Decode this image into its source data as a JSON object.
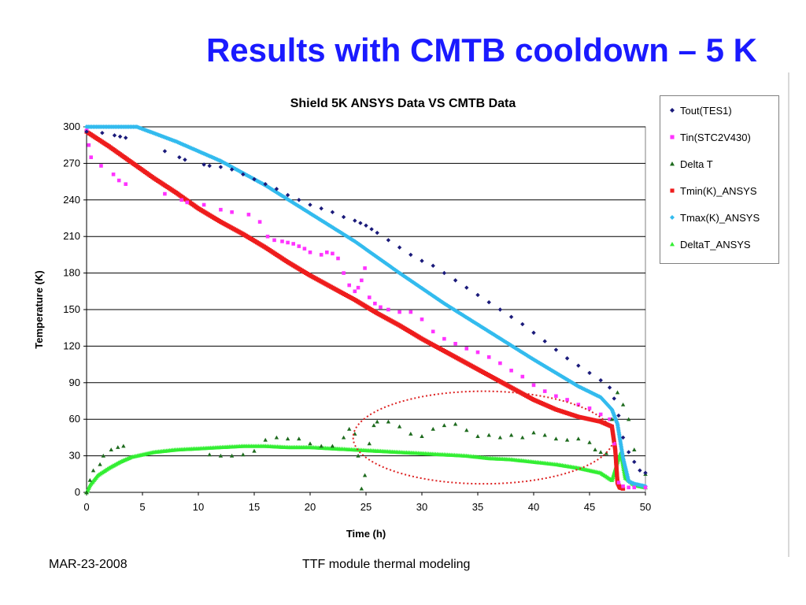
{
  "slide": {
    "title": "Results with CMTB cooldown – 5 K",
    "footer_left": "MAR-23-2008",
    "footer_center": "TTF module thermal modeling"
  },
  "chart_data": {
    "type": "scatter",
    "title": "Shield 5K ANSYS Data VS CMTB Data",
    "xlabel": "Time (h)",
    "ylabel": "Temperature (K)",
    "xlim": [
      0,
      50
    ],
    "ylim": [
      0,
      300
    ],
    "xticks": [
      0,
      5,
      10,
      15,
      20,
      25,
      30,
      35,
      40,
      45,
      50
    ],
    "yticks": [
      0,
      30,
      60,
      90,
      120,
      150,
      180,
      210,
      240,
      270,
      300
    ],
    "grid": "horizontal",
    "legend_position": "right",
    "annotation": "red dotted ellipse around Delta T between t≈24 h and t≈47 h",
    "series": [
      {
        "name": "Tout(TES1)",
        "marker": "diamond",
        "color": "#1a1a7a",
        "x": [
          0,
          1.4,
          2.5,
          3,
          3.5,
          7,
          8.3,
          8.8,
          10.5,
          11,
          12,
          13,
          14,
          15,
          16,
          17,
          18,
          19,
          20,
          21,
          22,
          23,
          24,
          24.5,
          25,
          25.5,
          26,
          27,
          28,
          29,
          30,
          31,
          32,
          33,
          34,
          35,
          36,
          37,
          38,
          39,
          40,
          41,
          42,
          43,
          44,
          45,
          46,
          46.8,
          47.2,
          47.6,
          48,
          48.5,
          49,
          49.5,
          50
        ],
        "y": [
          296,
          295,
          293,
          292,
          291,
          280,
          275,
          273,
          269,
          268,
          267,
          265,
          261,
          257,
          253,
          249,
          244,
          240,
          236,
          233,
          230,
          226,
          223,
          221,
          219,
          216,
          213,
          207,
          201,
          195,
          190,
          186,
          180,
          174,
          168,
          162,
          156,
          150,
          144,
          138,
          131,
          124,
          117,
          110,
          104,
          98,
          92,
          86,
          77,
          63,
          45,
          33,
          25,
          18,
          16
        ]
      },
      {
        "name": "Tin(STC2V430)",
        "marker": "square",
        "color": "#ff33ff",
        "x": [
          0,
          0.2,
          0.4,
          1.3,
          2.4,
          2.9,
          3.5,
          7,
          8.5,
          9,
          10.5,
          12,
          13,
          14.5,
          15.5,
          16.2,
          16.8,
          17.5,
          18,
          18.5,
          19,
          19.5,
          20,
          21,
          21.5,
          22,
          22.5,
          23,
          23.5,
          24,
          24.3,
          24.6,
          24.9,
          25.3,
          25.8,
          26.3,
          27,
          28,
          29,
          30,
          31,
          32,
          33,
          34,
          35,
          36,
          37,
          38,
          39,
          40,
          41,
          42,
          43,
          44,
          45,
          46,
          46.8,
          47.2,
          47.6,
          48,
          48.5,
          49,
          50
        ],
        "y": [
          297,
          285,
          275,
          268,
          261,
          256,
          253,
          245,
          240,
          238,
          236,
          232,
          230,
          228,
          222,
          210,
          207,
          206,
          205,
          204,
          202,
          200,
          197,
          195,
          197,
          196,
          192,
          180,
          170,
          165,
          168,
          174,
          184,
          160,
          155,
          152,
          150,
          148,
          148,
          142,
          132,
          126,
          122,
          118,
          115,
          111,
          106,
          100,
          95,
          88,
          83,
          79,
          76,
          72,
          69,
          64,
          60,
          40,
          8,
          5,
          4,
          4,
          4
        ]
      },
      {
        "name": "Delta T",
        "marker": "triangle",
        "color": "#1e6b1e",
        "x": [
          0,
          0.3,
          0.6,
          1.2,
          1.5,
          2.2,
          2.8,
          3.3,
          11,
          12,
          13,
          14,
          15,
          16,
          17,
          18,
          19,
          20,
          21,
          22,
          23,
          23.5,
          24,
          24.3,
          24.6,
          24.9,
          25.3,
          25.7,
          26,
          27,
          28,
          29,
          30,
          31,
          32,
          33,
          34,
          35,
          36,
          37,
          38,
          39,
          40,
          41,
          42,
          43,
          44,
          45,
          45.5,
          46,
          46.5,
          47,
          47.5,
          48,
          48.5,
          49,
          50
        ],
        "y": [
          0,
          10,
          18,
          23,
          30,
          35,
          37,
          38,
          31,
          30,
          30,
          31,
          34,
          43,
          45,
          44,
          44,
          40,
          38,
          38,
          45,
          52,
          48,
          30,
          3,
          14,
          40,
          55,
          58,
          58,
          54,
          48,
          46,
          52,
          55,
          56,
          51,
          46,
          47,
          45,
          47,
          45,
          49,
          47,
          44,
          43,
          44,
          41,
          35,
          33,
          32,
          60,
          82,
          72,
          60,
          35,
          15
        ]
      },
      {
        "name": "Tmin(K)_ANSYS",
        "marker": "square",
        "color": "#ee1c1c",
        "x": [
          0,
          2,
          4,
          6,
          8,
          10,
          12,
          14,
          16,
          18,
          20,
          22,
          24,
          26,
          28,
          30,
          32,
          34,
          36,
          38,
          40,
          42,
          44,
          46,
          47,
          47.3,
          47.5,
          47.7,
          48
        ],
        "y": [
          296,
          284,
          271,
          258,
          246,
          233,
          222,
          212,
          201,
          189,
          178,
          168,
          158,
          147,
          137,
          126,
          116,
          106,
          96,
          86,
          76,
          68,
          62,
          58,
          54,
          35,
          8,
          4,
          3
        ]
      },
      {
        "name": "Tmax(K)_ANSYS",
        "marker": "diamond",
        "color": "#33bbee",
        "x": [
          0,
          4.5,
          8,
          12,
          16,
          20,
          24,
          28,
          32,
          36,
          40,
          42,
          44,
          46,
          47,
          47.5,
          48,
          48.5,
          49,
          50
        ],
        "y": [
          300,
          300,
          288,
          272,
          252,
          229,
          206,
          180,
          155,
          132,
          109,
          98,
          87,
          78,
          68,
          56,
          28,
          9,
          7,
          5
        ]
      },
      {
        "name": "DeltaT_ANSYS",
        "marker": "triangle",
        "color": "#33ee33",
        "x": [
          0,
          0.3,
          1,
          2,
          3,
          4,
          5,
          6,
          7,
          8,
          10,
          12,
          14,
          16,
          18,
          20,
          22,
          24,
          26,
          28,
          30,
          32,
          34,
          36,
          38,
          40,
          42,
          44,
          46,
          47,
          47.5,
          47.8,
          48.2,
          49,
          50
        ],
        "y": [
          0,
          6,
          14,
          20,
          25,
          29,
          31,
          33,
          34,
          35,
          36,
          37,
          38,
          38,
          37,
          37,
          36,
          35,
          34,
          33,
          32,
          31,
          30,
          28,
          27,
          25,
          23,
          20,
          16,
          10,
          25,
          33,
          12,
          6,
          4
        ]
      }
    ]
  }
}
